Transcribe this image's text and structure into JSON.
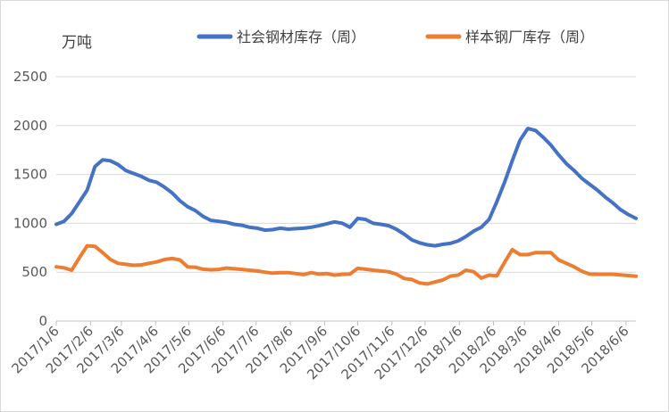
{
  "chart_data": {
    "type": "line",
    "ylabel": "万吨",
    "ylim": [
      0,
      2500
    ],
    "yticks": [
      0,
      500,
      1000,
      1500,
      2000,
      2500
    ],
    "xlim": [
      "2017/1/6",
      "2018/6/15"
    ],
    "x_tick_labels": [
      "2017/1/6",
      "2017/2/6",
      "2017/3/6",
      "2017/4/6",
      "2017/5/6",
      "2017/6/6",
      "2017/7/6",
      "2017/8/6",
      "2017/9/6",
      "2017/10/6",
      "2017/11/6",
      "2017/12/6",
      "2018/1/6",
      "2018/2/6",
      "2018/3/6",
      "2018/4/6",
      "2018/5/6",
      "2018/6/6"
    ],
    "grid": "horizontal",
    "legend_position": "top",
    "series": [
      {
        "name": "社会钢材库存（周）",
        "color": "#4472C4",
        "points": [
          [
            "2017/1/6",
            990
          ],
          [
            "2017/1/13",
            1020
          ],
          [
            "2017/1/20",
            1100
          ],
          [
            "2017/1/27",
            1220
          ],
          [
            "2017/2/3",
            1340
          ],
          [
            "2017/2/10",
            1580
          ],
          [
            "2017/2/17",
            1650
          ],
          [
            "2017/2/24",
            1640
          ],
          [
            "2017/3/3",
            1600
          ],
          [
            "2017/3/10",
            1540
          ],
          [
            "2017/3/17",
            1510
          ],
          [
            "2017/3/24",
            1480
          ],
          [
            "2017/3/31",
            1440
          ],
          [
            "2017/4/7",
            1420
          ],
          [
            "2017/4/14",
            1370
          ],
          [
            "2017/4/21",
            1310
          ],
          [
            "2017/4/28",
            1230
          ],
          [
            "2017/5/5",
            1170
          ],
          [
            "2017/5/12",
            1130
          ],
          [
            "2017/5/19",
            1070
          ],
          [
            "2017/5/26",
            1030
          ],
          [
            "2017/6/2",
            1020
          ],
          [
            "2017/6/9",
            1010
          ],
          [
            "2017/6/16",
            990
          ],
          [
            "2017/6/23",
            980
          ],
          [
            "2017/6/30",
            960
          ],
          [
            "2017/7/7",
            950
          ],
          [
            "2017/7/14",
            930
          ],
          [
            "2017/7/21",
            935
          ],
          [
            "2017/7/28",
            950
          ],
          [
            "2017/8/4",
            940
          ],
          [
            "2017/8/11",
            945
          ],
          [
            "2017/8/18",
            950
          ],
          [
            "2017/8/25",
            960
          ],
          [
            "2017/9/1",
            975
          ],
          [
            "2017/9/8",
            995
          ],
          [
            "2017/9/15",
            1015
          ],
          [
            "2017/9/22",
            1000
          ],
          [
            "2017/9/29",
            960
          ],
          [
            "2017/10/6",
            1050
          ],
          [
            "2017/10/13",
            1040
          ],
          [
            "2017/10/20",
            1000
          ],
          [
            "2017/10/27",
            990
          ],
          [
            "2017/11/3",
            975
          ],
          [
            "2017/11/10",
            940
          ],
          [
            "2017/11/17",
            890
          ],
          [
            "2017/11/24",
            830
          ],
          [
            "2017/12/1",
            800
          ],
          [
            "2017/12/8",
            780
          ],
          [
            "2017/12/15",
            770
          ],
          [
            "2017/12/22",
            785
          ],
          [
            "2017/12/29",
            795
          ],
          [
            "2018/1/5",
            820
          ],
          [
            "2018/1/12",
            865
          ],
          [
            "2018/1/19",
            920
          ],
          [
            "2018/1/26",
            960
          ],
          [
            "2018/2/2",
            1040
          ],
          [
            "2018/2/9",
            1220
          ],
          [
            "2018/2/16",
            1420
          ],
          [
            "2018/2/23",
            1640
          ],
          [
            "2018/3/2",
            1850
          ],
          [
            "2018/3/9",
            1970
          ],
          [
            "2018/3/16",
            1950
          ],
          [
            "2018/3/23",
            1880
          ],
          [
            "2018/3/30",
            1800
          ],
          [
            "2018/4/6",
            1700
          ],
          [
            "2018/4/13",
            1610
          ],
          [
            "2018/4/20",
            1540
          ],
          [
            "2018/4/27",
            1460
          ],
          [
            "2018/5/4",
            1400
          ],
          [
            "2018/5/11",
            1340
          ],
          [
            "2018/5/18",
            1270
          ],
          [
            "2018/5/25",
            1210
          ],
          [
            "2018/6/1",
            1140
          ],
          [
            "2018/6/8",
            1090
          ],
          [
            "2018/6/15",
            1050
          ]
        ]
      },
      {
        "name": "样本钢厂库存（周）",
        "color": "#ED7D31",
        "points": [
          [
            "2017/1/6",
            555
          ],
          [
            "2017/1/13",
            545
          ],
          [
            "2017/1/20",
            520
          ],
          [
            "2017/1/27",
            650
          ],
          [
            "2017/2/3",
            770
          ],
          [
            "2017/2/10",
            765
          ],
          [
            "2017/2/17",
            700
          ],
          [
            "2017/2/24",
            630
          ],
          [
            "2017/3/3",
            590
          ],
          [
            "2017/3/10",
            580
          ],
          [
            "2017/3/17",
            570
          ],
          [
            "2017/3/24",
            575
          ],
          [
            "2017/3/31",
            590
          ],
          [
            "2017/4/7",
            605
          ],
          [
            "2017/4/14",
            630
          ],
          [
            "2017/4/21",
            640
          ],
          [
            "2017/4/28",
            625
          ],
          [
            "2017/5/5",
            555
          ],
          [
            "2017/5/12",
            550
          ],
          [
            "2017/5/19",
            530
          ],
          [
            "2017/5/26",
            525
          ],
          [
            "2017/6/2",
            528
          ],
          [
            "2017/6/9",
            542
          ],
          [
            "2017/6/16",
            535
          ],
          [
            "2017/6/23",
            528
          ],
          [
            "2017/6/30",
            520
          ],
          [
            "2017/7/7",
            512
          ],
          [
            "2017/7/14",
            500
          ],
          [
            "2017/7/21",
            490
          ],
          [
            "2017/7/28",
            495
          ],
          [
            "2017/8/4",
            495
          ],
          [
            "2017/8/11",
            485
          ],
          [
            "2017/8/18",
            475
          ],
          [
            "2017/8/25",
            495
          ],
          [
            "2017/9/1",
            480
          ],
          [
            "2017/9/8",
            485
          ],
          [
            "2017/9/15",
            470
          ],
          [
            "2017/9/22",
            478
          ],
          [
            "2017/9/29",
            480
          ],
          [
            "2017/10/6",
            540
          ],
          [
            "2017/10/13",
            530
          ],
          [
            "2017/10/20",
            520
          ],
          [
            "2017/10/27",
            512
          ],
          [
            "2017/11/3",
            505
          ],
          [
            "2017/11/10",
            480
          ],
          [
            "2017/11/17",
            435
          ],
          [
            "2017/11/24",
            425
          ],
          [
            "2017/12/1",
            390
          ],
          [
            "2017/12/8",
            380
          ],
          [
            "2017/12/15",
            400
          ],
          [
            "2017/12/22",
            420
          ],
          [
            "2017/12/29",
            460
          ],
          [
            "2018/1/5",
            470
          ],
          [
            "2018/1/12",
            520
          ],
          [
            "2018/1/19",
            505
          ],
          [
            "2018/1/26",
            440
          ],
          [
            "2018/2/2",
            470
          ],
          [
            "2018/2/9",
            462
          ],
          [
            "2018/2/16",
            600
          ],
          [
            "2018/2/23",
            730
          ],
          [
            "2018/3/2",
            680
          ],
          [
            "2018/3/9",
            680
          ],
          [
            "2018/3/16",
            700
          ],
          [
            "2018/3/23",
            700
          ],
          [
            "2018/3/30",
            700
          ],
          [
            "2018/4/6",
            625
          ],
          [
            "2018/4/13",
            590
          ],
          [
            "2018/4/20",
            555
          ],
          [
            "2018/4/27",
            510
          ],
          [
            "2018/5/4",
            480
          ],
          [
            "2018/5/11",
            478
          ],
          [
            "2018/5/18",
            478
          ],
          [
            "2018/5/25",
            478
          ],
          [
            "2018/6/1",
            472
          ],
          [
            "2018/6/8",
            465
          ],
          [
            "2018/6/15",
            458
          ]
        ]
      }
    ]
  }
}
